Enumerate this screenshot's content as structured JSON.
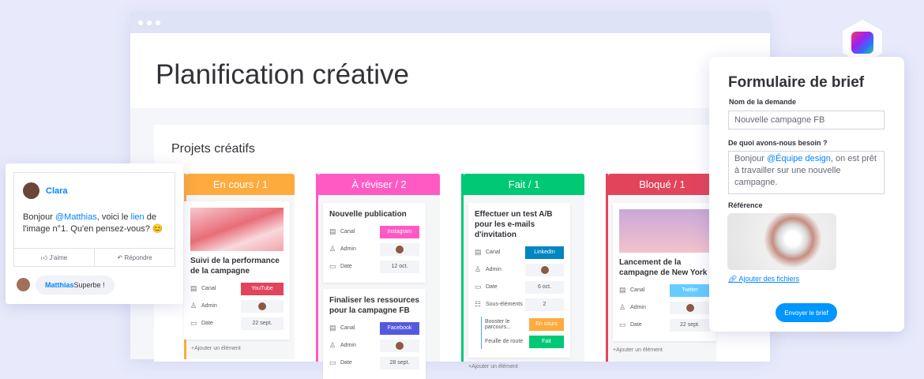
{
  "window": {
    "title": "Planification créative",
    "board_title": "Projets créatifs"
  },
  "columns": [
    {
      "title": "En cours / 1",
      "color": "#fdab3d",
      "cards": [
        {
          "title": "Suivi de la performance de la campagne",
          "canal": "YouTube",
          "canal_color": "#e2445c",
          "date": "22 sept."
        }
      ],
      "add": "+Ajouter un élément"
    },
    {
      "title": "À réviser / 2",
      "color": "#ff5ac4",
      "cards": [
        {
          "title": "Nouvelle publication",
          "canal": "Instagram",
          "canal_color": "#ff5ac4",
          "date": "12 oct."
        },
        {
          "title": "Finaliser les ressources pour la campagne FB",
          "canal": "Facebook",
          "canal_color": "#5559df",
          "date": "28 sept."
        }
      ]
    },
    {
      "title": "Fait / 1",
      "color": "#00c875",
      "cards": [
        {
          "title": "Effectuer un test A/B pour les e-mails d'invitation",
          "canal": "LinkedIn",
          "canal_color": "#0086c0",
          "date": "6 oct.",
          "subitems": "2"
        }
      ],
      "subitems": [
        {
          "name": "Booster le parcours...",
          "status": "En cours",
          "color": "#fdab3d"
        },
        {
          "name": "Feuille de route",
          "status": "Fait",
          "color": "#00c875"
        }
      ],
      "add": "+Ajouter un élément"
    },
    {
      "title": "Bloqué / 1",
      "color": "#e2445c",
      "cards": [
        {
          "title": "Lancement de la campagne de New York",
          "canal": "Twitter",
          "canal_color": "#66ccff",
          "date": "22 sept."
        }
      ],
      "add": "+Ajouter un élément"
    }
  ],
  "labels": {
    "canal": "Canal",
    "admin": "Admin",
    "date": "Date",
    "subitems": "Sous-éléments"
  },
  "comment": {
    "author": "Clara",
    "text_before": "Bonjour ",
    "mention": "@Matthias",
    "text_mid": ", voici le ",
    "link": "lien",
    "text_after": " de l'image n°1. Qu'en pensez-vous? 😊",
    "like": "J'aime",
    "reply": "Répondre",
    "reply_author": "Matthias",
    "reply_text": " Superbe !"
  },
  "form": {
    "title": "Formulaire de brief",
    "name_label": "Nom de la demande",
    "name_value": "Nouvelle campagne FB",
    "need_label": "De quoi avons-nous besoin ?",
    "need_before": "Bonjour ",
    "need_mention": "@Équipe design",
    "need_after": ", on est prêt à travailler sur une nouvelle campagne.",
    "ref_label": "Référence",
    "attach": "Ajouter des fichiers",
    "submit": "Envoyer le brief"
  }
}
